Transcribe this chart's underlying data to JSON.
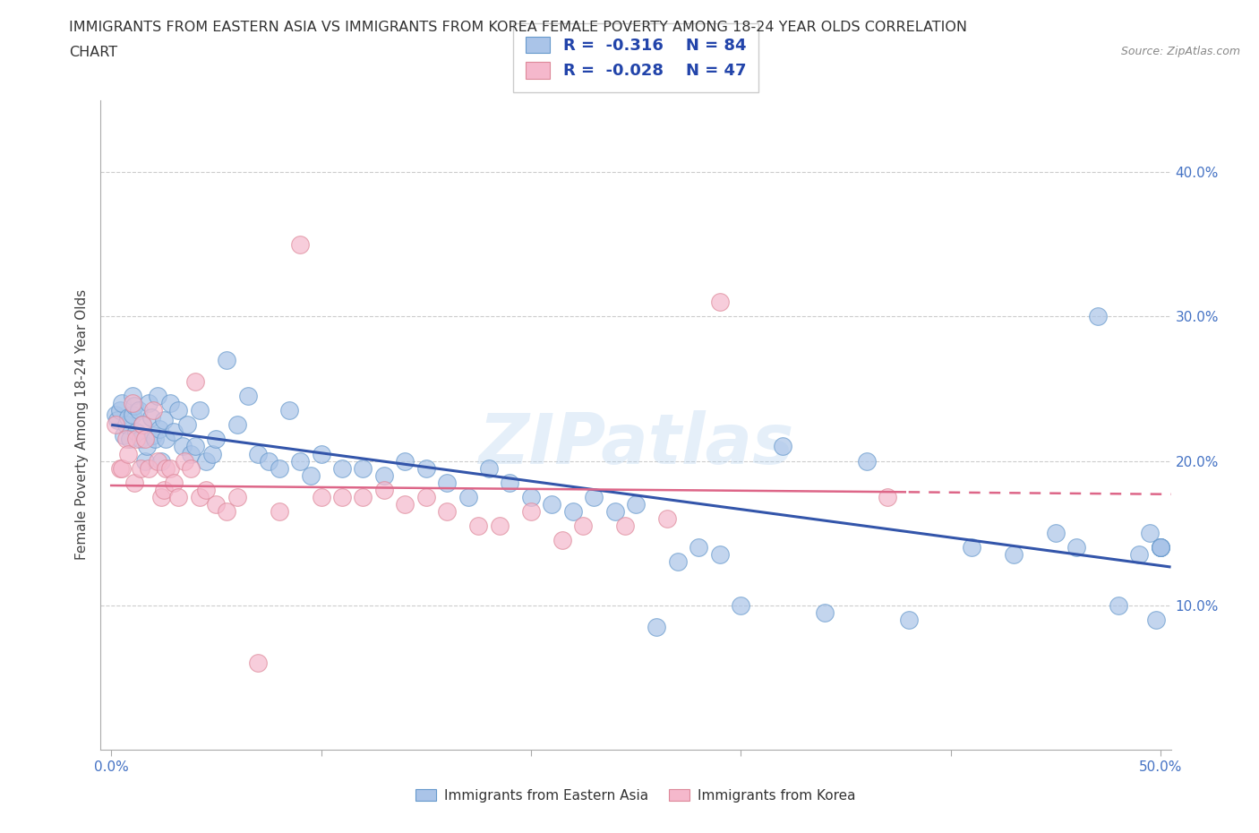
{
  "title_line1": "IMMIGRANTS FROM EASTERN ASIA VS IMMIGRANTS FROM KOREA FEMALE POVERTY AMONG 18-24 YEAR OLDS CORRELATION",
  "title_line2": "CHART",
  "source": "Source: ZipAtlas.com",
  "ylabel": "Female Poverty Among 18-24 Year Olds",
  "xlim": [
    -0.005,
    0.505
  ],
  "ylim": [
    0.0,
    0.45
  ],
  "xticks": [
    0.0,
    0.1,
    0.2,
    0.3,
    0.4,
    0.5
  ],
  "xticklabels": [
    "0.0%",
    "",
    "",
    "",
    "",
    "50.0%"
  ],
  "yticks": [
    0.1,
    0.2,
    0.3,
    0.4
  ],
  "yticklabels": [
    "10.0%",
    "20.0%",
    "30.0%",
    "40.0%"
  ],
  "series1_color": "#aac4e8",
  "series1_edge": "#6699cc",
  "series2_color": "#f5b8cc",
  "series2_edge": "#dd8899",
  "series1_label": "Immigrants from Eastern Asia",
  "series2_label": "Immigrants from Korea",
  "R1": -0.316,
  "N1": 84,
  "R2": -0.028,
  "N2": 47,
  "trend1_color": "#3355aa",
  "trend2_color": "#dd6688",
  "watermark": "ZIPatlas",
  "background_color": "#ffffff",
  "legend_text_color": "#2244aa",
  "grid_color": "#cccccc",
  "axis_color": "#aaaaaa",
  "tick_color": "#4472c4",
  "trend1_intercept": 0.225,
  "trend1_slope": -0.195,
  "trend2_intercept": 0.183,
  "trend2_slope": -0.012,
  "trend2_solid_end": 0.38,
  "series1_x": [
    0.002,
    0.003,
    0.004,
    0.005,
    0.006,
    0.007,
    0.008,
    0.009,
    0.01,
    0.01,
    0.011,
    0.012,
    0.013,
    0.014,
    0.015,
    0.016,
    0.017,
    0.018,
    0.019,
    0.02,
    0.021,
    0.022,
    0.023,
    0.024,
    0.025,
    0.026,
    0.028,
    0.03,
    0.032,
    0.034,
    0.036,
    0.038,
    0.04,
    0.042,
    0.045,
    0.048,
    0.05,
    0.055,
    0.06,
    0.065,
    0.07,
    0.075,
    0.08,
    0.085,
    0.09,
    0.095,
    0.1,
    0.11,
    0.12,
    0.13,
    0.14,
    0.15,
    0.16,
    0.17,
    0.18,
    0.19,
    0.2,
    0.21,
    0.22,
    0.23,
    0.24,
    0.25,
    0.26,
    0.27,
    0.28,
    0.29,
    0.3,
    0.32,
    0.34,
    0.36,
    0.38,
    0.41,
    0.43,
    0.45,
    0.46,
    0.47,
    0.48,
    0.49,
    0.495,
    0.498,
    0.5,
    0.5,
    0.5,
    0.5
  ],
  "series1_y": [
    0.232,
    0.228,
    0.235,
    0.24,
    0.218,
    0.225,
    0.23,
    0.215,
    0.245,
    0.232,
    0.238,
    0.22,
    0.235,
    0.215,
    0.225,
    0.2,
    0.21,
    0.24,
    0.23,
    0.218,
    0.215,
    0.245,
    0.222,
    0.2,
    0.228,
    0.215,
    0.24,
    0.22,
    0.235,
    0.21,
    0.225,
    0.205,
    0.21,
    0.235,
    0.2,
    0.205,
    0.215,
    0.27,
    0.225,
    0.245,
    0.205,
    0.2,
    0.195,
    0.235,
    0.2,
    0.19,
    0.205,
    0.195,
    0.195,
    0.19,
    0.2,
    0.195,
    0.185,
    0.175,
    0.195,
    0.185,
    0.175,
    0.17,
    0.165,
    0.175,
    0.165,
    0.17,
    0.085,
    0.13,
    0.14,
    0.135,
    0.1,
    0.21,
    0.095,
    0.2,
    0.09,
    0.14,
    0.135,
    0.15,
    0.14,
    0.3,
    0.1,
    0.135,
    0.15,
    0.09,
    0.14,
    0.14,
    0.14,
    0.14
  ],
  "series2_x": [
    0.002,
    0.004,
    0.005,
    0.007,
    0.008,
    0.01,
    0.011,
    0.012,
    0.014,
    0.015,
    0.016,
    0.018,
    0.02,
    0.022,
    0.024,
    0.025,
    0.026,
    0.028,
    0.03,
    0.032,
    0.035,
    0.038,
    0.04,
    0.042,
    0.045,
    0.05,
    0.055,
    0.06,
    0.07,
    0.08,
    0.09,
    0.1,
    0.11,
    0.12,
    0.13,
    0.14,
    0.15,
    0.16,
    0.175,
    0.185,
    0.2,
    0.215,
    0.225,
    0.245,
    0.265,
    0.29,
    0.37
  ],
  "series2_y": [
    0.225,
    0.195,
    0.195,
    0.215,
    0.205,
    0.24,
    0.185,
    0.215,
    0.195,
    0.225,
    0.215,
    0.195,
    0.235,
    0.2,
    0.175,
    0.18,
    0.195,
    0.195,
    0.185,
    0.175,
    0.2,
    0.195,
    0.255,
    0.175,
    0.18,
    0.17,
    0.165,
    0.175,
    0.06,
    0.165,
    0.35,
    0.175,
    0.175,
    0.175,
    0.18,
    0.17,
    0.175,
    0.165,
    0.155,
    0.155,
    0.165,
    0.145,
    0.155,
    0.155,
    0.16,
    0.31,
    0.175
  ]
}
